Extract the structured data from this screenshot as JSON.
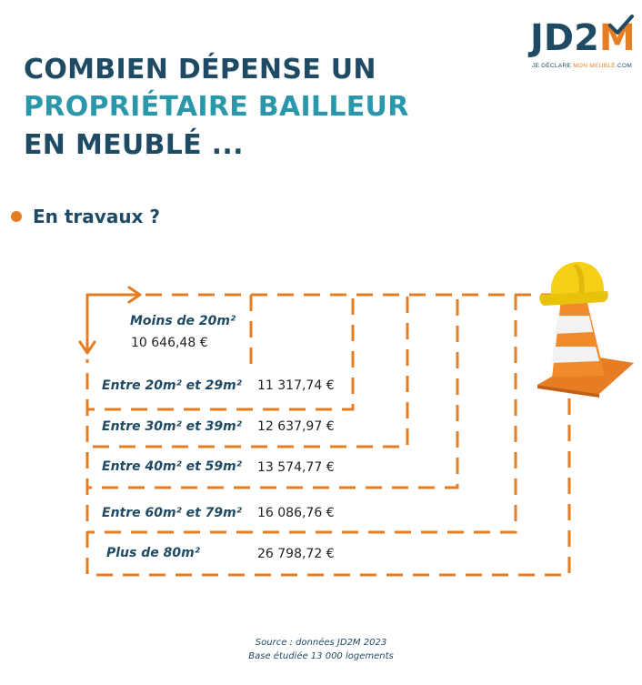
{
  "brand": {
    "logo_main": "JD2",
    "logo_accent": "M",
    "tagline_start": "JE DÉCLARE ",
    "tagline_accent": "MON MEUBLÉ",
    "tagline_end": ".COM",
    "colors": {
      "dark": "#1e4a63",
      "teal": "#2a97ab",
      "orange": "#e67d22"
    }
  },
  "title": {
    "line1": "COMBIEN DÉPENSE UN",
    "line2": "PROPRIÉTAIRE BAILLEUR",
    "line3": "EN MEUBLÉ ..."
  },
  "subtitle": "En travaux ?",
  "rows": [
    {
      "label": "Moins de 20m²",
      "value": "10 646,48 €"
    },
    {
      "label": "Entre 20m² et 29m²",
      "value": "11 317,74 €"
    },
    {
      "label": "Entre 30m² et 39m²",
      "value": "12 637,97 €"
    },
    {
      "label": "Entre 40m² et 59m²",
      "value": "13 574,77 €"
    },
    {
      "label": "Entre 60m² et 79m²",
      "value": "16 086,76 €"
    },
    {
      "label": "Plus de 80m²",
      "value": "26 798,72 €"
    }
  ],
  "source": {
    "line1": "Source :  données JD2M 2023",
    "line2": "Base étudiée 13 000 logements"
  },
  "icons": {
    "hard_hat": "hard-hat-icon",
    "cone": "traffic-cone-icon",
    "arrows": "corner-arrows-icon"
  }
}
